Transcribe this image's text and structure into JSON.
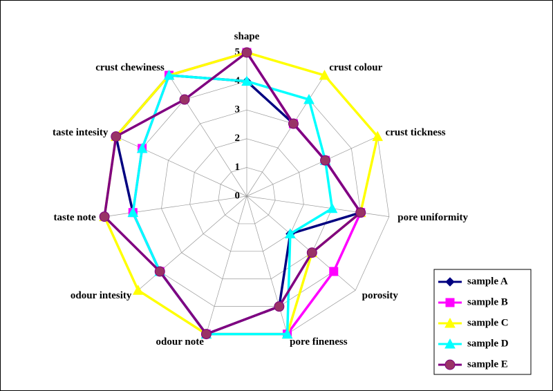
{
  "chart_data": {
    "type": "radar",
    "categories": [
      "shape",
      "crust colour",
      "crust tickness",
      "pore uniformity",
      "porosity",
      "pore fineness",
      "odour note",
      "odour intesity",
      "taste note",
      "taste intesity",
      "crust chewiness"
    ],
    "rlim": [
      0,
      5
    ],
    "rticks": [
      0,
      1,
      2,
      3,
      4,
      5
    ],
    "grid": true,
    "legend": "bottom-right",
    "series": [
      {
        "name": "sample A",
        "color": "#000080",
        "marker": "diamond",
        "values": [
          4,
          3,
          3,
          4,
          2,
          4,
          5,
          4,
          4,
          5,
          5
        ]
      },
      {
        "name": "sample B",
        "color": "#ff00ff",
        "marker": "square",
        "values": [
          5,
          3,
          3,
          4,
          4,
          5,
          5,
          4,
          4,
          4,
          5
        ]
      },
      {
        "name": "sample C",
        "color": "#ffff00",
        "marker": "triangle",
        "values": [
          5,
          5,
          5,
          4,
          3,
          5,
          5,
          5,
          5,
          5,
          5
        ]
      },
      {
        "name": "sample D",
        "color": "#00ffff",
        "marker": "triangle",
        "values": [
          4,
          4,
          3,
          3,
          2,
          5,
          5,
          4,
          4,
          4,
          5
        ]
      },
      {
        "name": "sample E",
        "color": "#800080",
        "marker": "circle",
        "values": [
          5,
          3,
          3,
          4,
          3,
          4,
          5,
          4,
          5,
          5,
          4
        ]
      }
    ]
  }
}
